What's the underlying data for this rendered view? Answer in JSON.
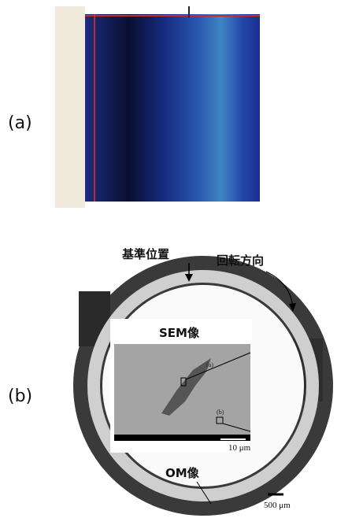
{
  "panels": [
    {
      "label": "(a)"
    },
    {
      "label": "(b)",
      "annotations": {
        "reference_position": "基準位置",
        "rotation_direction": "回転方向",
        "sem_image": "SEM像",
        "om_image": "OM像",
        "sem_scale": "10 μm",
        "om_scale": "500 μm",
        "sem_marker_a": "(a)",
        "sem_marker_b": "(b)"
      }
    }
  ]
}
